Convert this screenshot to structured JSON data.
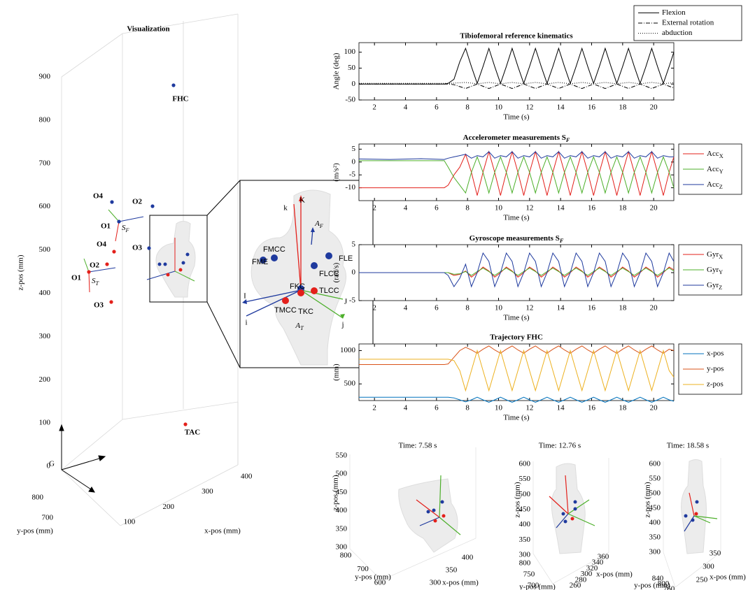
{
  "chart_data": [
    {
      "type": "line",
      "title": "Tibiofemoral reference kinematics",
      "xlabel": "Time (s)",
      "ylabel": "Angle (deg)",
      "x": [
        1,
        3,
        5,
        6.5,
        6.75,
        7.125,
        7.5,
        7.875,
        8.25,
        8.625,
        9,
        9.375,
        9.75,
        10.125,
        10.5,
        10.875,
        11.25,
        11.625,
        12,
        12.375,
        12.75,
        13.125,
        13.5,
        13.875,
        14.25,
        14.625,
        15,
        15.375,
        15.75,
        16.125,
        16.5,
        16.875,
        17.25,
        17.625,
        18,
        18.375,
        18.75,
        19.125,
        19.5,
        19.875,
        20.25,
        20.625,
        21,
        21.3
      ],
      "xlim": [
        1,
        21.3
      ],
      "xticks": [
        2,
        4,
        6,
        8,
        10,
        12,
        14,
        16,
        18,
        20
      ],
      "ylim": [
        -50,
        130
      ],
      "yticks": [
        -50,
        0,
        50,
        100
      ],
      "legend": "outside-top-right",
      "series": [
        {
          "name": "Flexion",
          "color": "#000000",
          "dash": "solid",
          "values": [
            0,
            0,
            0,
            0,
            2,
            15,
            70,
            112,
            55,
            2,
            55,
            112,
            55,
            2,
            55,
            112,
            55,
            2,
            55,
            112,
            55,
            2,
            55,
            112,
            55,
            2,
            55,
            112,
            55,
            2,
            55,
            112,
            55,
            2,
            55,
            112,
            55,
            2,
            55,
            112,
            55,
            2,
            55,
            100
          ]
        },
        {
          "name": "External rotation",
          "color": "#000000",
          "dash": "dashdot",
          "values": [
            0,
            0,
            0,
            0,
            0,
            -2,
            -8,
            -14,
            -7,
            0,
            -7,
            -14,
            -7,
            0,
            -7,
            -14,
            -7,
            0,
            -7,
            -14,
            -7,
            0,
            -7,
            -14,
            -7,
            0,
            -7,
            -14,
            -7,
            0,
            -7,
            -14,
            -7,
            0,
            -7,
            -14,
            -7,
            0,
            -7,
            -14,
            -7,
            0,
            -7,
            -12
          ]
        },
        {
          "name": "abduction",
          "color": "#000000",
          "dash": "dotted",
          "values": [
            2,
            2,
            2,
            2,
            2,
            3,
            4,
            5,
            3,
            1,
            3,
            5,
            3,
            1,
            3,
            5,
            3,
            1,
            3,
            5,
            3,
            1,
            3,
            5,
            3,
            1,
            3,
            5,
            3,
            1,
            3,
            5,
            3,
            1,
            3,
            5,
            3,
            1,
            3,
            5,
            3,
            1,
            3,
            4
          ]
        }
      ]
    },
    {
      "type": "line",
      "title": "Accelerometer measurements SF",
      "xlabel": "Time (s)",
      "ylabel": "(m/s²)",
      "x": [
        1,
        3,
        5,
        6.5,
        6.75,
        7.125,
        7.5,
        7.875,
        8.25,
        8.625,
        9,
        9.375,
        9.75,
        10.125,
        10.5,
        10.875,
        11.25,
        11.625,
        12,
        12.375,
        12.75,
        13.125,
        13.5,
        13.875,
        14.25,
        14.625,
        15,
        15.375,
        15.75,
        16.125,
        16.5,
        16.875,
        17.25,
        17.625,
        18,
        18.375,
        18.75,
        19.125,
        19.5,
        19.875,
        20.25,
        20.625,
        21,
        21.3
      ],
      "xlim": [
        1,
        21.3
      ],
      "xticks": [
        2,
        4,
        6,
        8,
        10,
        12,
        14,
        16,
        18,
        20
      ],
      "ylim": [
        -15,
        7
      ],
      "yticks": [
        -10,
        -5,
        0,
        5
      ],
      "legend": "outside-right",
      "series": [
        {
          "name": "AccX",
          "color": "#e3201b",
          "dash": "solid",
          "values": [
            -10,
            -10,
            -10,
            -10,
            -9,
            -5,
            -2,
            3,
            -4,
            -13,
            -4,
            4,
            -4,
            -13,
            -4,
            4,
            -4,
            -13,
            -4,
            4,
            -4,
            -13,
            -4,
            4,
            -4,
            -13,
            -4,
            4,
            -4,
            -13,
            -4,
            4,
            -4,
            -13,
            -4,
            4,
            -4,
            -13,
            -4,
            4,
            -4,
            -13,
            -4,
            2
          ]
        },
        {
          "name": "AccY",
          "color": "#4caf2a",
          "dash": "solid",
          "values": [
            0.5,
            0.5,
            0.5,
            0.5,
            -2,
            -6,
            -9,
            -12,
            -4,
            2,
            -4,
            -12,
            -4,
            2,
            -4,
            -12,
            -4,
            2,
            -4,
            -12,
            -4,
            2,
            -4,
            -12,
            -4,
            2,
            -4,
            -12,
            -4,
            2,
            -4,
            -12,
            -4,
            2,
            -4,
            -12,
            -4,
            2,
            -4,
            -12,
            -4,
            2,
            -4,
            -10
          ]
        },
        {
          "name": "AccZ",
          "color": "#1f3a9e",
          "dash": "solid",
          "values": [
            1.2,
            1,
            1.3,
            1,
            1.5,
            2,
            2.5,
            3,
            1.5,
            2.5,
            2,
            4,
            1.5,
            2.5,
            2,
            4,
            1.5,
            2.5,
            2,
            4,
            1.5,
            2.5,
            2,
            4,
            1.5,
            2.5,
            2,
            4,
            1.5,
            2.5,
            2,
            4,
            1.5,
            2.5,
            2,
            4,
            1.5,
            2.5,
            2,
            4,
            1.5,
            2.5,
            2,
            2
          ]
        }
      ]
    },
    {
      "type": "line",
      "title": "Gyroscope measurements SF",
      "xlabel": "Time (s)",
      "ylabel": "(rad/s)",
      "x": [
        1,
        3,
        5,
        6.5,
        6.75,
        7.125,
        7.5,
        7.875,
        8.25,
        8.625,
        9,
        9.375,
        9.75,
        10.125,
        10.5,
        10.875,
        11.25,
        11.625,
        12,
        12.375,
        12.75,
        13.125,
        13.5,
        13.875,
        14.25,
        14.625,
        15,
        15.375,
        15.75,
        16.125,
        16.5,
        16.875,
        17.25,
        17.625,
        18,
        18.375,
        18.75,
        19.125,
        19.5,
        19.875,
        20.25,
        20.625,
        21,
        21.3
      ],
      "xlim": [
        1,
        21.3
      ],
      "xticks": [
        2,
        4,
        6,
        8,
        10,
        12,
        14,
        16,
        18,
        20
      ],
      "ylim": [
        -5,
        5
      ],
      "yticks": [
        -5,
        0,
        5
      ],
      "legend": "outside-right",
      "series": [
        {
          "name": "GyrX",
          "color": "#e3201b",
          "dash": "solid",
          "values": [
            0,
            0,
            0,
            0,
            0,
            -0.5,
            -0.3,
            0.3,
            -0.8,
            0,
            1,
            0.3,
            -0.8,
            0,
            1,
            0.3,
            -0.8,
            0,
            1,
            0.3,
            -0.8,
            0,
            1,
            0.3,
            -0.8,
            0,
            1,
            0.3,
            -0.8,
            0,
            1,
            0.3,
            -0.8,
            0,
            1,
            0.3,
            -0.8,
            0,
            1,
            0.3,
            -0.8,
            0,
            1,
            0.5
          ]
        },
        {
          "name": "GyrY",
          "color": "#4caf2a",
          "dash": "solid",
          "values": [
            0,
            0,
            0,
            0,
            0,
            -0.3,
            -0.2,
            0.2,
            -0.5,
            0.2,
            0.8,
            0.2,
            -0.5,
            0.2,
            0.8,
            0.2,
            -0.5,
            0.2,
            0.8,
            0.2,
            -0.5,
            0.2,
            0.8,
            0.2,
            -0.5,
            0.2,
            0.8,
            0.2,
            -0.5,
            0.2,
            0.8,
            0.2,
            -0.5,
            0.2,
            0.8,
            0.2,
            -0.5,
            0.2,
            0.8,
            0.2,
            -0.5,
            0.2,
            0.8,
            0.3
          ]
        },
        {
          "name": "GyrZ",
          "color": "#1f3a9e",
          "dash": "solid",
          "values": [
            0,
            0,
            0,
            0,
            -0.5,
            -2.5,
            -1,
            1.5,
            -2.5,
            0,
            3.5,
            2,
            -2.5,
            0,
            3.5,
            2,
            -2.5,
            0,
            3.5,
            2,
            -2.5,
            0,
            3.5,
            2,
            -2.5,
            0,
            3.5,
            2,
            -2.5,
            0,
            3.5,
            2,
            -2.5,
            0,
            3.5,
            2,
            -2.5,
            0,
            3.5,
            2,
            -2.5,
            0,
            3.5,
            2
          ]
        }
      ]
    },
    {
      "type": "line",
      "title": "Trajectory FHC",
      "xlabel": "Time (s)",
      "ylabel": "(mm)",
      "x": [
        1,
        3,
        5,
        6.5,
        6.75,
        7.125,
        7.5,
        7.875,
        8.25,
        8.625,
        9,
        9.375,
        9.75,
        10.125,
        10.5,
        10.875,
        11.25,
        11.625,
        12,
        12.375,
        12.75,
        13.125,
        13.5,
        13.875,
        14.25,
        14.625,
        15,
        15.375,
        15.75,
        16.125,
        16.5,
        16.875,
        17.25,
        17.625,
        18,
        18.375,
        18.75,
        19.125,
        19.5,
        19.875,
        20.25,
        20.625,
        21,
        21.3
      ],
      "xlim": [
        1,
        21.3
      ],
      "xticks": [
        2,
        4,
        6,
        8,
        10,
        12,
        14,
        16,
        18,
        20
      ],
      "ylim": [
        250,
        1100
      ],
      "yticks": [
        500,
        1000
      ],
      "legend": "outside-right",
      "series": [
        {
          "name": "x-pos",
          "color": "#0072bd",
          "dash": "solid",
          "values": [
            300,
            300,
            300,
            300,
            300,
            290,
            260,
            230,
            260,
            300,
            260,
            225,
            260,
            300,
            260,
            225,
            260,
            300,
            260,
            225,
            260,
            300,
            260,
            225,
            260,
            300,
            260,
            225,
            260,
            300,
            260,
            225,
            260,
            300,
            260,
            225,
            260,
            300,
            260,
            225,
            260,
            300,
            260,
            240
          ]
        },
        {
          "name": "y-pos",
          "color": "#d95319",
          "dash": "solid",
          "values": [
            790,
            790,
            790,
            790,
            800,
            900,
            1000,
            1050,
            1010,
            960,
            1020,
            1070,
            1010,
            960,
            1020,
            1070,
            1010,
            960,
            1020,
            1070,
            1010,
            960,
            1020,
            1070,
            1010,
            960,
            1020,
            1070,
            1010,
            960,
            1020,
            1070,
            1010,
            960,
            1020,
            1070,
            1010,
            960,
            1020,
            1070,
            1010,
            960,
            1020,
            1000
          ]
        },
        {
          "name": "z-pos",
          "color": "#edb120",
          "dash": "solid",
          "values": [
            870,
            870,
            870,
            870,
            870,
            850,
            700,
            400,
            700,
            1000,
            700,
            400,
            700,
            1000,
            700,
            400,
            700,
            1000,
            700,
            400,
            700,
            1000,
            700,
            400,
            700,
            1000,
            700,
            400,
            700,
            1000,
            700,
            400,
            700,
            1000,
            700,
            400,
            700,
            1000,
            700,
            400,
            700,
            1000,
            700,
            600
          ]
        }
      ]
    }
  ],
  "visualization": {
    "title": "Visualization",
    "z_label": "z-pos (mm)",
    "y_label": "y-pos (mm)",
    "x_label": "x-pos (mm)",
    "zticks": [
      0,
      100,
      200,
      300,
      400,
      500,
      600,
      700,
      800,
      900
    ],
    "yticks": [
      800,
      700
    ],
    "xticks": [
      100,
      200,
      300,
      400
    ],
    "origin": "G",
    "points": [
      "FHC",
      "O4",
      "O2",
      "O1",
      "O3",
      "O4",
      "O2",
      "O1",
      "O3",
      "TAC"
    ],
    "frames": [
      "SF",
      "ST"
    ],
    "inset": [
      "FME",
      "FMCC",
      "FKC",
      "FLCC",
      "FLE",
      "TMCC",
      "TKC",
      "TLCC",
      "K",
      "k",
      "I",
      "i",
      "J",
      "j",
      "AF",
      "AT"
    ]
  },
  "snapshots": [
    {
      "title": "Time: 7.58 s",
      "z_label": "z-pos (mm)",
      "y_label": "y-pos (mm)",
      "x_label": "x-pos (mm)",
      "zticks": [
        300,
        350,
        400,
        450,
        500,
        550
      ],
      "yticks": [
        800,
        700,
        600
      ],
      "xticks": [
        300,
        350,
        400
      ]
    },
    {
      "title": "Time: 12.76 s",
      "z_label": "z-pos (mm)",
      "y_label": "y-pos (mm)",
      "x_label": "x-pos (mm)",
      "zticks": [
        300,
        350,
        400,
        450,
        500,
        550,
        600
      ],
      "yticks": [
        800,
        750,
        700
      ],
      "xticks": [
        260,
        280,
        300,
        320,
        340,
        360
      ]
    },
    {
      "title": "Time: 18.58 s",
      "z_label": "z-pos (mm)",
      "y_label": "y-pos (mm)",
      "x_label": "x-pos (mm)",
      "zticks": [
        300,
        350,
        400,
        450,
        500,
        550,
        600
      ],
      "yticks": [
        840,
        800,
        760
      ],
      "xticks": [
        250,
        300,
        350
      ]
    }
  ]
}
